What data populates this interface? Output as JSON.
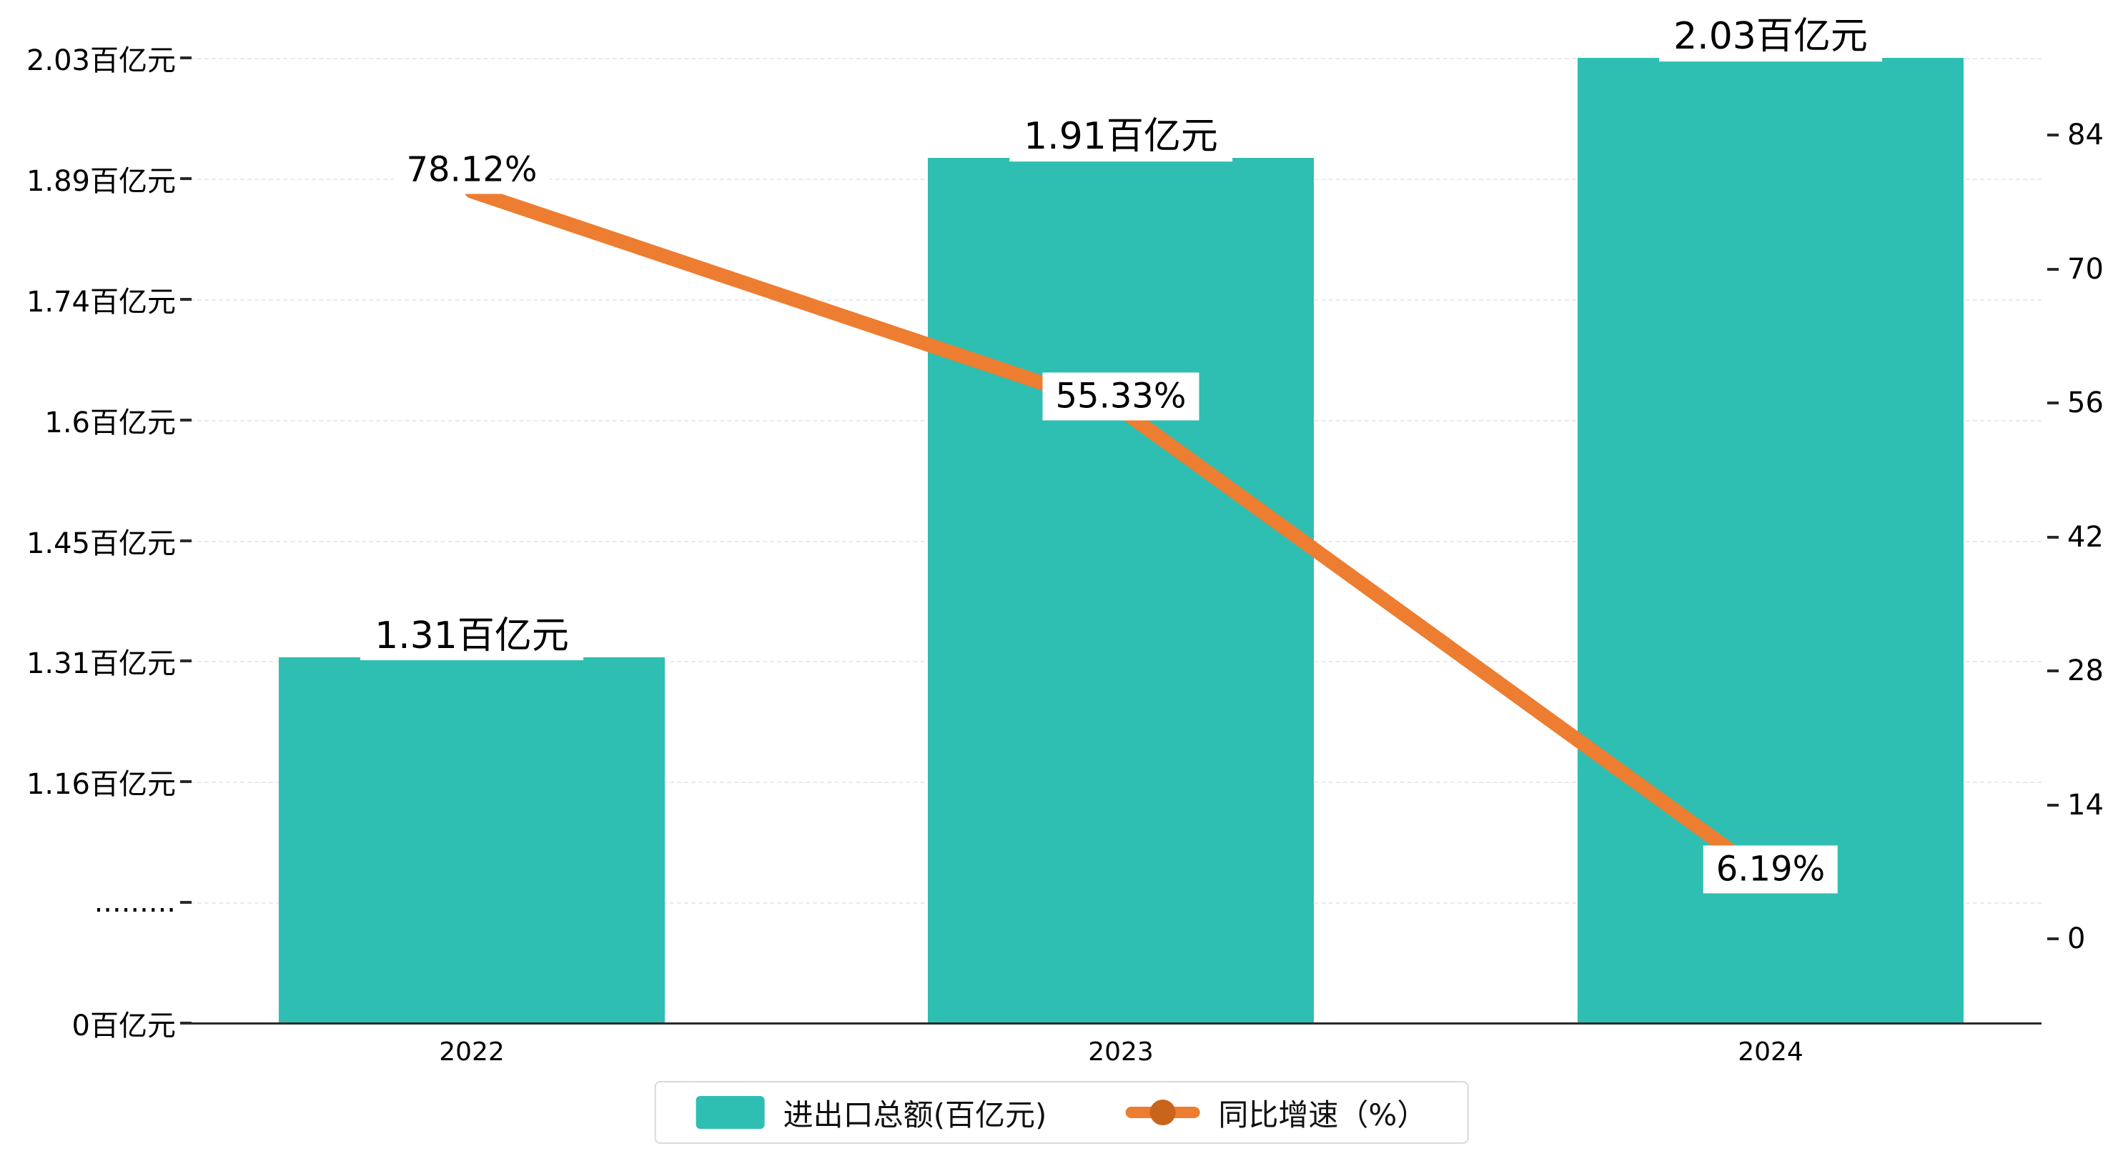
{
  "chart_data": {
    "type": "combo",
    "categories": [
      "2022",
      "2023",
      "2024"
    ],
    "series": [
      {
        "name": "进出口总额(百亿元)",
        "type": "bar",
        "color": "#2fbeb2",
        "values": [
          1.31,
          1.91,
          2.03
        ],
        "value_labels": [
          "1.31百亿元",
          "1.91百亿元",
          "2.03百亿元"
        ]
      },
      {
        "name": "同比增速（%）",
        "type": "line",
        "color": "#ed7d31",
        "values": [
          78.12,
          55.33,
          6.19
        ],
        "value_labels": [
          "78.12%",
          "55.33%",
          "6.19%"
        ]
      }
    ],
    "left_axis": {
      "tick_labels": [
        "2.03百亿元",
        "1.89百亿元",
        "1.74百亿元",
        "1.6百亿元",
        "1.45百亿元",
        "1.31百亿元",
        "1.16百亿元",
        ".........",
        "0百亿元"
      ],
      "tick_values": [
        2.03,
        1.89,
        1.74,
        1.6,
        1.45,
        1.31,
        1.16,
        null,
        0
      ]
    },
    "right_axis": {
      "tick_labels": [
        "84",
        "70",
        "56",
        "42",
        "28",
        "14",
        "0"
      ],
      "tick_values": [
        84,
        70,
        56,
        42,
        28,
        14,
        0
      ],
      "min": 0,
      "max": 84
    },
    "legend": {
      "items": [
        {
          "label": "进出口总额(百亿元)",
          "marker": "teal-square"
        },
        {
          "label": "同比增速（%）",
          "marker": "orange-line-dot"
        }
      ]
    },
    "grid": true,
    "legend_position": "bottom-center"
  },
  "colors": {
    "bar": "#2fbeb2",
    "line": "#ed7d31",
    "line_marker": "#c9641c",
    "axis": "#2a2a2a",
    "grid": "#eaeaea",
    "label_text": "#000000",
    "legend_border": "#d9d9d9",
    "background": "#ffffff"
  }
}
